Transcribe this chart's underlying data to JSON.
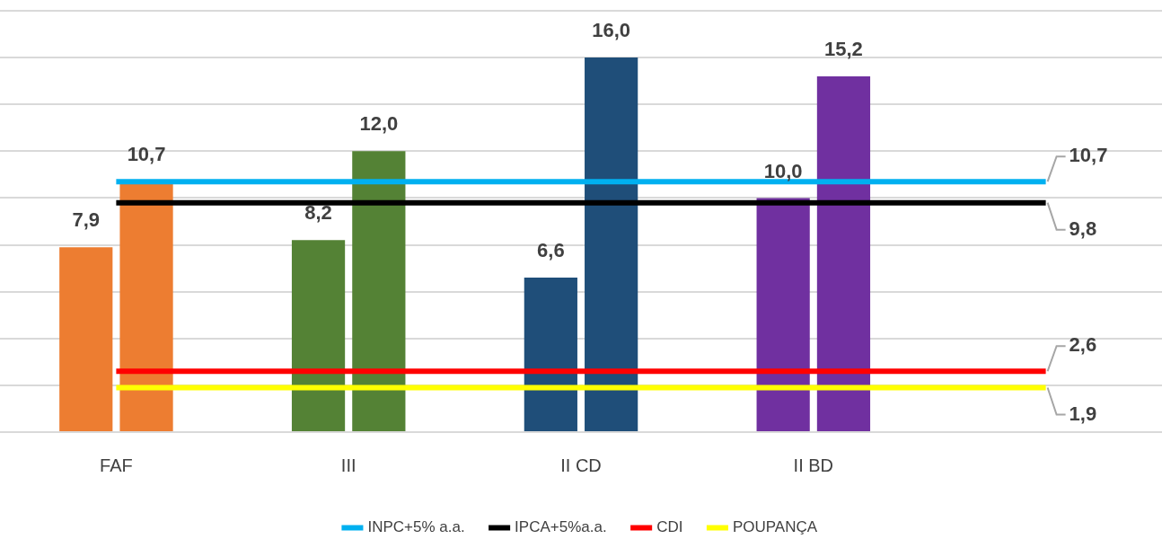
{
  "chart_data": {
    "type": "bar",
    "categories": [
      "FAF",
      "III",
      "II CD",
      "II BD",
      null
    ],
    "series": [
      {
        "colors": [
          "#ed7d31",
          "#548235",
          "#1f4e79",
          "#7030a0",
          null
        ],
        "values": [
          7.9,
          8.2,
          6.6,
          10.0,
          null
        ],
        "value_labels": [
          "7,9",
          "8,2",
          "6,6",
          "10,0",
          null
        ]
      },
      {
        "colors": [
          "#ed7d31",
          "#548235",
          "#1f4e79",
          "#7030a0",
          null
        ],
        "values": [
          10.7,
          12.0,
          16.0,
          15.2,
          null
        ],
        "value_labels": [
          "10,7",
          "12,0",
          "16,0",
          "15,2",
          null
        ]
      },
      {
        "type": "line",
        "name": "INPC+5% a.a.",
        "color": "#00b0f0",
        "values": [
          10.7,
          10.7,
          10.7,
          10.7,
          10.7
        ],
        "value_labels": [
          null,
          null,
          null,
          null,
          "10,7"
        ]
      },
      {
        "type": "line",
        "name": "IPCA+5%a.a.",
        "color": "#000000",
        "values": [
          9.8,
          9.8,
          9.8,
          9.8,
          9.8
        ],
        "value_labels": [
          null,
          null,
          null,
          null,
          "9,8"
        ]
      },
      {
        "type": "line",
        "name": "CDI",
        "color": "#ff0000",
        "values": [
          2.6,
          2.6,
          2.6,
          2.6,
          2.6
        ],
        "value_labels": [
          null,
          null,
          null,
          null,
          "2,6"
        ]
      },
      {
        "type": "line",
        "name": "POUPANÇA",
        "color": "#ffff00",
        "values": [
          1.9,
          1.9,
          1.9,
          1.9,
          1.9
        ],
        "value_labels": [
          null,
          null,
          null,
          null,
          "1,9"
        ]
      }
    ],
    "ylim": [
      0,
      18
    ],
    "yticks": [
      {
        "value": 0,
        "label": null
      },
      {
        "value": 2,
        "label": null
      },
      {
        "value": 4,
        "label": null
      },
      {
        "value": 6,
        "label": null
      },
      {
        "value": 8,
        "label": null
      },
      {
        "value": 10,
        "label": null
      },
      {
        "value": 12,
        "label": null
      },
      {
        "value": 14,
        "label": null
      },
      {
        "value": 16,
        "label": null
      },
      {
        "value": 18,
        "label": null
      }
    ],
    "grid": "y",
    "legend": "bottom",
    "tick_labels": "x"
  }
}
